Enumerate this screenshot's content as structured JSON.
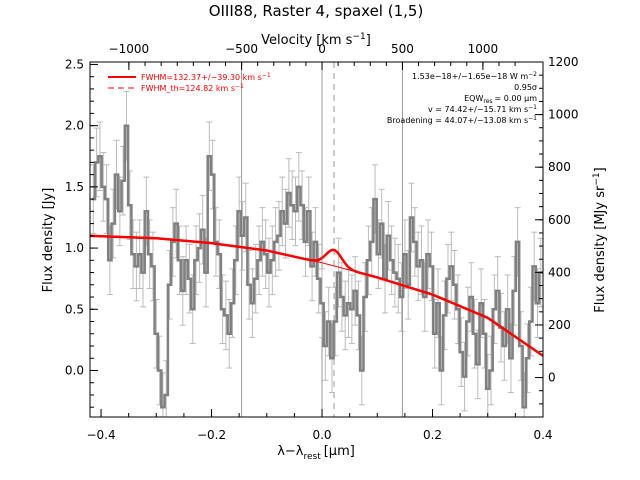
{
  "chart_data": {
    "type": "line",
    "title": "OIII88, Raster 4, spaxel (1,5)",
    "xlabel": "λ−λ",
    "xlabel_sub": "rest",
    "xlabel_unit": "[μm]",
    "ylabel": "Flux density [Jy]",
    "y2label": "Flux density [MJy sr",
    "y2label_sup": "−1",
    "y2label_end": "]",
    "top_axis_label": "Velocity [km s",
    "top_axis_sup": "−1",
    "top_axis_end": "]",
    "xlim": [
      -0.42,
      0.4
    ],
    "ylim": [
      -0.38,
      2.52
    ],
    "y2lim": [
      -150,
      1200
    ],
    "xticks": [
      -0.4,
      -0.2,
      0.0,
      0.2,
      0.4
    ],
    "xtick_labels": [
      "−0.4",
      "−0.2",
      "0.0",
      "0.2",
      "0.4"
    ],
    "yticks": [
      0.0,
      0.5,
      1.0,
      1.5,
      2.0,
      2.5
    ],
    "ytick_labels": [
      "0.0",
      "0.5",
      "1.0",
      "1.5",
      "2.0",
      "2.5"
    ],
    "y2ticks": [
      0,
      200,
      400,
      600,
      800,
      1000,
      1200
    ],
    "y2tick_labels": [
      "0",
      "200",
      "400",
      "600",
      "800",
      "1000",
      "1200"
    ],
    "top_ticks_x": [
      -0.3497,
      -0.1456,
      0.1456,
      0.2912
    ],
    "top_tick_labels": [
      "−1000",
      "−500",
      "500",
      "1000"
    ],
    "top_zero_label": "0",
    "vlines_solid_x": [
      -0.1456,
      0.0,
      0.1456
    ],
    "vline_dashed_x": 0.0217,
    "legend": {
      "placement": "top-left",
      "items": [
        {
          "label": "FWHM=132.37+/−39.30 km s",
          "sup": "−1",
          "style": "solid",
          "color": "#ff0000"
        },
        {
          "label": "FWHM_th=124.82 km s",
          "sup": "−1",
          "style": "dashed",
          "color": "#ff0000"
        }
      ]
    },
    "annotations": [
      {
        "text": "1.53e−18+/−1.65e−18 W m",
        "sup": "−2"
      },
      {
        "text": "0.95σ"
      },
      {
        "text": "EQW",
        "sub": "res",
        "tail": "= 0.00 μm"
      },
      {
        "text": "v = 74.42+/−15.71 km s",
        "sup": "−1"
      },
      {
        "text": "Broadening = 44.07+/−13.08 km s",
        "sup": "−1"
      }
    ],
    "continuum": {
      "x": [
        -0.42,
        -0.3,
        -0.2,
        -0.1,
        0.0,
        0.1,
        0.2,
        0.3,
        0.4
      ],
      "y": [
        1.1,
        1.08,
        1.04,
        0.98,
        0.88,
        0.76,
        0.62,
        0.43,
        0.12
      ]
    },
    "fit_peak": {
      "center": 0.0217,
      "amplitude": 0.13,
      "sigma": 0.014
    },
    "series": [
      {
        "style": "histogram-with-errorbars",
        "color": "#808080",
        "x": [
          -0.414,
          -0.408,
          -0.402,
          -0.396,
          -0.39,
          -0.384,
          -0.378,
          -0.372,
          -0.366,
          -0.36,
          -0.354,
          -0.348,
          -0.342,
          -0.336,
          -0.33,
          -0.324,
          -0.318,
          -0.312,
          -0.306,
          -0.3,
          -0.294,
          -0.288,
          -0.282,
          -0.276,
          -0.27,
          -0.264,
          -0.258,
          -0.252,
          -0.246,
          -0.24,
          -0.234,
          -0.228,
          -0.222,
          -0.216,
          -0.21,
          -0.204,
          -0.198,
          -0.192,
          -0.186,
          -0.18,
          -0.174,
          -0.168,
          -0.162,
          -0.156,
          -0.15,
          -0.144,
          -0.138,
          -0.132,
          -0.126,
          -0.12,
          -0.114,
          -0.108,
          -0.102,
          -0.096,
          -0.09,
          -0.084,
          -0.078,
          -0.072,
          -0.066,
          -0.06,
          -0.054,
          -0.048,
          -0.042,
          -0.036,
          -0.03,
          -0.024,
          -0.018,
          -0.012,
          -0.006,
          0.0,
          0.006,
          0.012,
          0.018,
          0.024,
          0.03,
          0.036,
          0.042,
          0.048,
          0.054,
          0.06,
          0.066,
          0.072,
          0.078,
          0.084,
          0.09,
          0.096,
          0.102,
          0.108,
          0.114,
          0.12,
          0.126,
          0.132,
          0.138,
          0.144,
          0.15,
          0.156,
          0.162,
          0.168,
          0.174,
          0.18,
          0.186,
          0.192,
          0.198,
          0.204,
          0.21,
          0.216,
          0.222,
          0.228,
          0.234,
          0.24,
          0.246,
          0.252,
          0.258,
          0.264,
          0.27,
          0.276,
          0.282,
          0.288,
          0.294,
          0.3,
          0.306,
          0.312,
          0.318,
          0.324,
          0.33,
          0.336,
          0.342,
          0.348,
          0.354,
          0.36,
          0.366,
          0.372,
          0.378,
          0.384,
          0.39,
          0.396
        ],
        "y": [
          1.4,
          1.7,
          1.75,
          1.5,
          1.4,
          0.9,
          1.2,
          1.6,
          1.3,
          1.55,
          2.0,
          1.35,
          0.95,
          0.85,
          0.95,
          0.8,
          1.3,
          0.95,
          0.85,
          0.3,
          0.0,
          -0.3,
          -0.2,
          0.7,
          1.05,
          1.2,
          0.9,
          0.65,
          0.9,
          0.75,
          0.5,
          0.9,
          1.0,
          1.15,
          0.8,
          1.75,
          1.6,
          1.05,
          0.95,
          0.5,
          0.45,
          0.3,
          0.55,
          0.9,
          1.3,
          1.1,
          1.25,
          0.7,
          0.55,
          0.75,
          0.9,
          1.05,
          0.95,
          0.8,
          0.9,
          1.05,
          1.1,
          1.3,
          1.2,
          1.45,
          1.35,
          1.3,
          1.5,
          1.35,
          1.05,
          1.3,
          0.85,
          1.05,
          0.75,
          0.55,
          0.2,
          0.4,
          0.1,
          0.4,
          0.8,
          0.6,
          0.45,
          0.55,
          0.5,
          0.65,
          0.45,
          0.0,
          0.6,
          0.9,
          1.05,
          1.4,
          0.95,
          1.2,
          0.75,
          1.1,
          0.9,
          0.8,
          0.75,
          0.6,
          0.95,
          0.7,
          1.25,
          1.05,
          0.85,
          0.9,
          0.6,
          0.95,
          0.85,
          0.3,
          0.55,
          0.0,
          0.45,
          0.75,
          0.85,
          0.7,
          0.5,
          0.15,
          -0.05,
          0.4,
          0.6,
          0.3,
          0.05,
          0.55,
          0.3,
          -0.15,
          0.0,
          0.5,
          0.65,
          0.35,
          0.2,
          0.5,
          0.1,
          0.65,
          1.05,
          0.2,
          -0.3,
          0.1,
          0.4,
          0.85,
          0.55,
          0.8
        ],
        "yerr": 0.28
      }
    ]
  }
}
